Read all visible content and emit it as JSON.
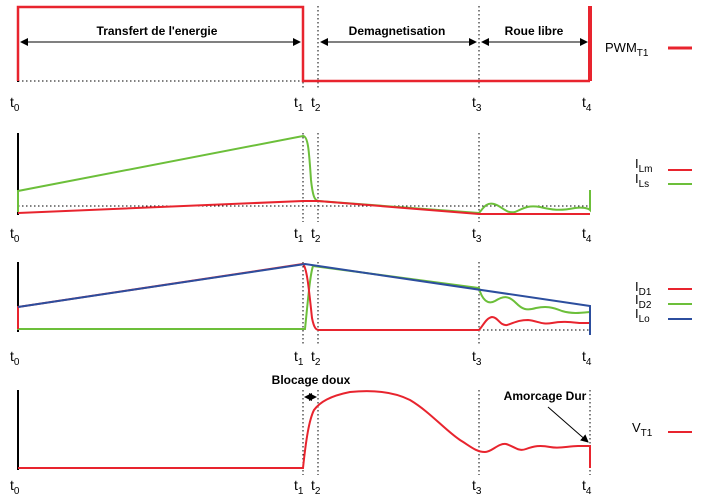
{
  "colors": {
    "red": "#e8242e",
    "green": "#6cbf3a",
    "blue": "#2c4e9e",
    "black": "#000000"
  },
  "time_labels": {
    "t0": {
      "base": "t",
      "sub": "0"
    },
    "t1": {
      "base": "t",
      "sub": "1"
    },
    "t2": {
      "base": "t",
      "sub": "2"
    },
    "t3": {
      "base": "t",
      "sub": "3"
    },
    "t4": {
      "base": "t",
      "sub": "4"
    }
  },
  "phases": {
    "transfer": "Transfert de l'energie",
    "demag": "Demagnetisation",
    "freewheel": "Roue libre"
  },
  "annotations": {
    "soft_block": "Blocage doux",
    "hard_turn_on": "Amorcage Dur"
  },
  "legends": {
    "pwm": {
      "base": "PWM",
      "sub": "T1"
    },
    "ilm": {
      "base": "I",
      "sub": "Lm"
    },
    "ils": {
      "base": "I",
      "sub": "Ls"
    },
    "id1": {
      "base": "I",
      "sub": "D1"
    },
    "id2": {
      "base": "I",
      "sub": "D2"
    },
    "ilo": {
      "base": "I",
      "sub": "Lo"
    },
    "vt1": {
      "base": "V",
      "sub": "T1"
    }
  }
}
